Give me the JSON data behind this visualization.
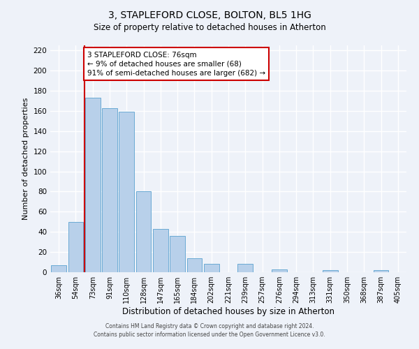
{
  "title": "3, STAPLEFORD CLOSE, BOLTON, BL5 1HG",
  "subtitle": "Size of property relative to detached houses in Atherton",
  "xlabel": "Distribution of detached houses by size in Atherton",
  "ylabel": "Number of detached properties",
  "categories": [
    "36sqm",
    "54sqm",
    "73sqm",
    "91sqm",
    "110sqm",
    "128sqm",
    "147sqm",
    "165sqm",
    "184sqm",
    "202sqm",
    "221sqm",
    "239sqm",
    "257sqm",
    "276sqm",
    "294sqm",
    "313sqm",
    "331sqm",
    "350sqm",
    "368sqm",
    "387sqm",
    "405sqm"
  ],
  "values": [
    7,
    50,
    173,
    163,
    159,
    80,
    43,
    36,
    14,
    8,
    0,
    8,
    0,
    3,
    0,
    0,
    2,
    0,
    0,
    2,
    0
  ],
  "bar_color": "#b8d0ea",
  "bar_edge_color": "#6aaad4",
  "property_line_color": "#cc0000",
  "annotation_line1": "3 STAPLEFORD CLOSE: 76sqm",
  "annotation_line2": "← 9% of detached houses are smaller (68)",
  "annotation_line3": "91% of semi-detached houses are larger (682) →",
  "annotation_box_color": "#cc0000",
  "ylim": [
    0,
    225
  ],
  "yticks": [
    0,
    20,
    40,
    60,
    80,
    100,
    120,
    140,
    160,
    180,
    200,
    220
  ],
  "footer_line1": "Contains HM Land Registry data © Crown copyright and database right 2024.",
  "footer_line2": "Contains public sector information licensed under the Open Government Licence v3.0.",
  "bg_color": "#eef2f9",
  "grid_color": "#ffffff",
  "title_fontsize": 10,
  "subtitle_fontsize": 8.5,
  "ylabel_fontsize": 8,
  "xlabel_fontsize": 8.5,
  "tick_fontsize": 7,
  "annotation_fontsize": 7.5,
  "footer_fontsize": 5.5
}
